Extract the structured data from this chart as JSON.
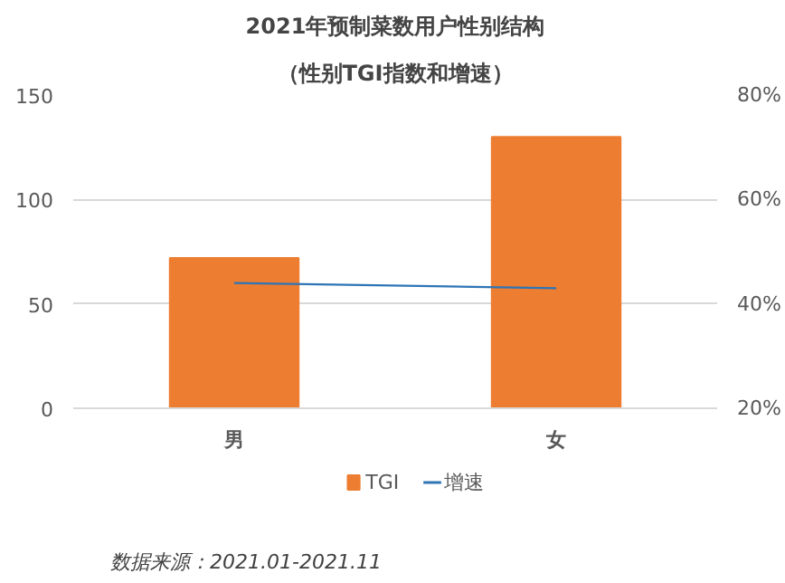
{
  "chart_data": {
    "type": "bar",
    "title": "2021年预制菜数用户性别结构",
    "subtitle": "（性别TGI指数和增速）",
    "categories": [
      "男",
      "女"
    ],
    "series": [
      {
        "name": "TGI",
        "color": "#ed7d31",
        "values": [
          72,
          130
        ]
      },
      {
        "name": "增速",
        "type": "line",
        "axis": "y2",
        "color": "#2e75b6",
        "values": [
          44,
          43
        ]
      }
    ],
    "ylim": [
      0,
      150
    ],
    "yticks": [
      0,
      50,
      100,
      150
    ],
    "y2lim": [
      20,
      80
    ],
    "y2ticks": [
      {
        "value": 20,
        "label": "20%"
      },
      {
        "value": 40,
        "label": "40%"
      },
      {
        "value": 60,
        "label": "60%"
      },
      {
        "value": 80,
        "label": "80%"
      }
    ],
    "grid": "y",
    "legend": "bottom",
    "marker": "none",
    "annotations": [
      "数据来源：2021.01-2021.11"
    ]
  }
}
